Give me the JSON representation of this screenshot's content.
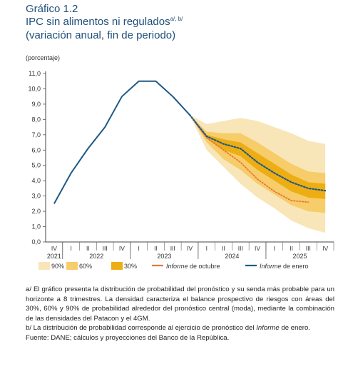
{
  "header": {
    "title_line1": "Gráfico 1.2",
    "title_line2": "IPC sin alimentos ni regulados",
    "title_sup": "a/, b/",
    "title_line3": "(variación anual, fin de periodo)"
  },
  "unit_label": "(porcentaje)",
  "colors": {
    "band90": "#f9e6b8",
    "band60": "#f6cd6a",
    "band30": "#edae14",
    "october": "#e8763a",
    "january": "#1f5a85"
  },
  "chart_data": {
    "type": "line",
    "ylim": [
      0,
      11
    ],
    "yticks": [
      "0,0",
      "1,0",
      "2,0",
      "3,0",
      "4,0",
      "5,0",
      "6,0",
      "7,0",
      "8,0",
      "9,0",
      "10,0",
      "11,0"
    ],
    "quarter_labels": [
      "IV",
      "I",
      "II",
      "III",
      "IV",
      "I",
      "II",
      "III",
      "IV",
      "I",
      "II",
      "III",
      "IV",
      "I",
      "II",
      "III",
      "IV"
    ],
    "year_labels": [
      {
        "label": "2021",
        "index": 0
      },
      {
        "label": "2022",
        "index": 2.5
      },
      {
        "label": "2023",
        "index": 6.5
      },
      {
        "label": "2024",
        "index": 10.5
      },
      {
        "label": "2025",
        "index": 14.5
      }
    ],
    "historical": {
      "name": "Informe de enero",
      "x": [
        0,
        1,
        2,
        3,
        4,
        5,
        6,
        7,
        8
      ],
      "y": [
        2.5,
        4.5,
        6.1,
        7.5,
        9.5,
        10.5,
        10.5,
        9.5,
        8.3
      ]
    },
    "january_forecast": {
      "name": "Informe de enero",
      "x": [
        8,
        9,
        10,
        11,
        12,
        13,
        14,
        15,
        16
      ],
      "y": [
        8.3,
        6.9,
        6.4,
        6.1,
        5.2,
        4.5,
        3.9,
        3.5,
        3.35
      ]
    },
    "october_forecast": {
      "name": "Informe de octubre",
      "x": [
        8,
        9,
        10,
        11,
        12,
        13,
        14,
        15
      ],
      "y": [
        8.3,
        6.8,
        6.0,
        5.2,
        4.1,
        3.3,
        2.7,
        2.6
      ]
    },
    "fan": {
      "x": [
        8,
        9,
        10,
        11,
        12,
        13,
        14,
        15,
        16
      ],
      "p90_high": [
        8.3,
        7.7,
        7.9,
        8.1,
        7.9,
        7.5,
        7.1,
        6.6,
        6.4
      ],
      "p60_high": [
        8.3,
        7.2,
        7.1,
        7.1,
        6.5,
        5.8,
        5.1,
        4.6,
        4.5
      ],
      "p30_high": [
        8.3,
        7.0,
        6.7,
        6.5,
        5.8,
        5.1,
        4.4,
        3.9,
        3.8
      ],
      "p30_low": [
        8.3,
        6.8,
        6.0,
        5.6,
        4.7,
        4.0,
        3.3,
        2.9,
        2.8
      ],
      "p60_low": [
        8.3,
        6.5,
        5.4,
        4.7,
        3.8,
        3.1,
        2.4,
        2.0,
        1.9
      ],
      "p90_low": [
        8.3,
        6.0,
        4.9,
        3.8,
        2.9,
        2.2,
        1.4,
        0.9,
        0.6
      ]
    }
  },
  "legend": {
    "band90": "90%",
    "band60": "60%",
    "band30": "30%",
    "october_italic": "Informe",
    "october_rest": " de octubre",
    "january_italic": "Informe",
    "january_rest": " de enero"
  },
  "notes": {
    "note_a": "a/ El gráfico presenta la distribución de probabilidad del pronóstico y su senda más probable para un horizonte a 8 trimestres. La densidad caracteriza el balance prospectivo de riesgos con áreas del 30%, 60% y 90% de probabilidad alrededor del pronóstico central (moda), mediante la combinación de las densidades del Patacon y el 4GM.",
    "note_b_start": "b/ La distribución de probabilidad corresponde al ejercicio de pronóstico del ",
    "note_b_italic": "Informe",
    "note_b_end": " de enero.",
    "source": "Fuente: DANE; cálculos y proyecciones del Banco de la República."
  }
}
